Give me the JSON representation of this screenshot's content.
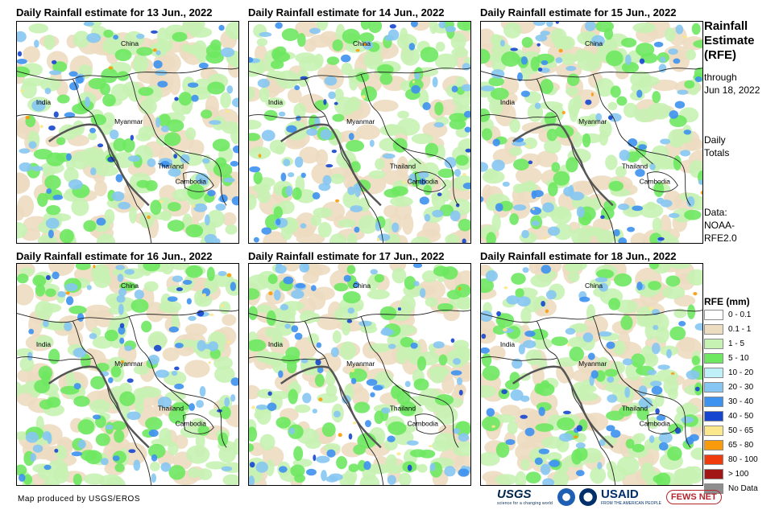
{
  "panels": [
    {
      "title": "Daily Rainfall estimate for 13 Jun., 2022",
      "labels": [
        "China",
        "India",
        "Myanmar",
        "Thailand",
        "Cambodia"
      ]
    },
    {
      "title": "Daily Rainfall estimate for 14 Jun., 2022",
      "labels": [
        "China",
        "India",
        "Myanmar",
        "Thailand",
        "Cambodia"
      ]
    },
    {
      "title": "Daily Rainfall estimate for 15 Jun., 2022",
      "labels": [
        "China",
        "India",
        "Myanmar",
        "Thailand",
        "Cambodia"
      ]
    },
    {
      "title": "Daily Rainfall estimate for 16 Jun., 2022",
      "labels": [
        "China",
        "India",
        "Myanmar",
        "Thailand",
        "Cambodia"
      ]
    },
    {
      "title": "Daily Rainfall estimate for 17 Jun., 2022",
      "labels": [
        "China",
        "India",
        "Myanmar",
        "Thailand",
        "Cambodia"
      ]
    },
    {
      "title": "Daily Rainfall estimate for 18 Jun., 2022",
      "labels": [
        "China",
        "India",
        "Myanmar",
        "Thailand",
        "Cambodia"
      ]
    }
  ],
  "side": {
    "title_lines": [
      "Rainfall",
      "Estimate",
      "(RFE)"
    ],
    "through_lines": [
      "through",
      "Jun 18, 2022"
    ],
    "totals_lines": [
      "Daily",
      "Totals"
    ],
    "data_lines": [
      "Data:",
      "NOAA-",
      "RFE2.0"
    ]
  },
  "legend": {
    "title": "RFE (mm)",
    "items": [
      {
        "label": "0 - 0.1",
        "color": "#ffffff"
      },
      {
        "label": "0.1 - 1",
        "color": "#ecdcc0"
      },
      {
        "label": "1 - 5",
        "color": "#c6f2b3"
      },
      {
        "label": "5 - 10",
        "color": "#6ee861"
      },
      {
        "label": "10 - 20",
        "color": "#bff0f7"
      },
      {
        "label": "20 - 30",
        "color": "#86c6f2"
      },
      {
        "label": "30 - 40",
        "color": "#3d91ef"
      },
      {
        "label": "40 - 50",
        "color": "#1646cf"
      },
      {
        "label": "50 - 65",
        "color": "#fbe88c"
      },
      {
        "label": "65 - 80",
        "color": "#f99b0a"
      },
      {
        "label": "80 - 100",
        "color": "#f03c0c"
      },
      {
        "label": "> 100",
        "color": "#a31616"
      },
      {
        "label": "No Data",
        "color": "#8e8e8e"
      }
    ]
  },
  "footer": {
    "credit": "Map produced by USGS/EROS",
    "logos": {
      "usgs": "USGS",
      "usgs_tagline": "science for a changing world",
      "usaid": "USAID",
      "usaid_tagline": "FROM THE AMERICAN PEOPLE",
      "fews": "FEWS NET"
    }
  }
}
